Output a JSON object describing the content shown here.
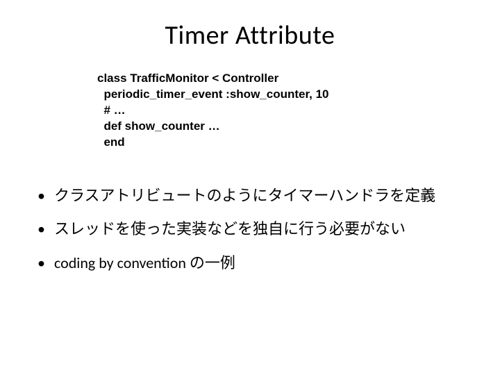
{
  "title": "Timer Attribute",
  "code": {
    "line1": "class TrafficMonitor < Controller",
    "line2": "  periodic_timer_event :show_counter, 10",
    "line3": "",
    "line4": "  # …",
    "line5": "",
    "line6": "  def show_counter …",
    "line7": "  end"
  },
  "bullets": [
    "クラスアトリビュートのようにタイマーハンドラを定義",
    "スレッドを使った実装などを独自に行う必要がない",
    "coding by convention の一例"
  ],
  "colors": {
    "background": "#ffffff",
    "text": "#000000"
  },
  "typography": {
    "title_fontsize": 38,
    "code_fontsize": 17,
    "bullet_fontsize": 22
  }
}
